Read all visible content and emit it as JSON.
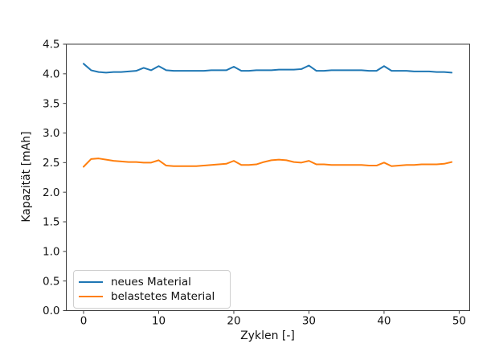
{
  "figure": {
    "background": "#ffffff",
    "spine_color": "#3b3b3b",
    "text_color": "#111111"
  },
  "chart_data": {
    "type": "line",
    "title": "",
    "xlabel": "Zyklen [-]",
    "ylabel": "Kapazität [mAh]",
    "xlim": [
      -2.3,
      51.4
    ],
    "ylim": [
      0,
      4.5
    ],
    "x_ticks": [
      0,
      10,
      20,
      30,
      40,
      50
    ],
    "y_ticks": [
      0,
      0.5,
      1.0,
      1.5,
      2.0,
      2.5,
      3.0,
      3.5,
      4.0,
      4.5
    ],
    "y_tick_decimals": 1,
    "grid": false,
    "legend_position": "lower left",
    "x": [
      0,
      1,
      2,
      3,
      4,
      5,
      6,
      7,
      8,
      9,
      10,
      11,
      12,
      13,
      14,
      15,
      16,
      17,
      18,
      19,
      20,
      21,
      22,
      23,
      24,
      25,
      26,
      27,
      28,
      29,
      30,
      31,
      32,
      33,
      34,
      35,
      36,
      37,
      38,
      39,
      40,
      41,
      42,
      43,
      44,
      45,
      46,
      47,
      48,
      49
    ],
    "series": [
      {
        "name": "neues Material",
        "color": "#1f77b4",
        "values": [
          4.17,
          4.06,
          4.03,
          4.02,
          4.03,
          4.03,
          4.04,
          4.05,
          4.1,
          4.06,
          4.13,
          4.06,
          4.05,
          4.05,
          4.05,
          4.05,
          4.05,
          4.06,
          4.06,
          4.06,
          4.12,
          4.05,
          4.05,
          4.06,
          4.06,
          4.06,
          4.07,
          4.07,
          4.07,
          4.08,
          4.14,
          4.05,
          4.05,
          4.06,
          4.06,
          4.06,
          4.06,
          4.06,
          4.05,
          4.05,
          4.13,
          4.05,
          4.05,
          4.05,
          4.04,
          4.04,
          4.04,
          4.03,
          4.03,
          4.02
        ]
      },
      {
        "name": "belastetes Material",
        "color": "#ff7f0e",
        "values": [
          2.43,
          2.56,
          2.57,
          2.55,
          2.53,
          2.52,
          2.51,
          2.51,
          2.5,
          2.5,
          2.54,
          2.45,
          2.44,
          2.44,
          2.44,
          2.44,
          2.45,
          2.46,
          2.47,
          2.48,
          2.53,
          2.46,
          2.46,
          2.47,
          2.51,
          2.54,
          2.55,
          2.54,
          2.51,
          2.5,
          2.53,
          2.47,
          2.47,
          2.46,
          2.46,
          2.46,
          2.46,
          2.46,
          2.45,
          2.45,
          2.5,
          2.44,
          2.45,
          2.46,
          2.46,
          2.47,
          2.47,
          2.47,
          2.48,
          2.51
        ]
      }
    ]
  }
}
